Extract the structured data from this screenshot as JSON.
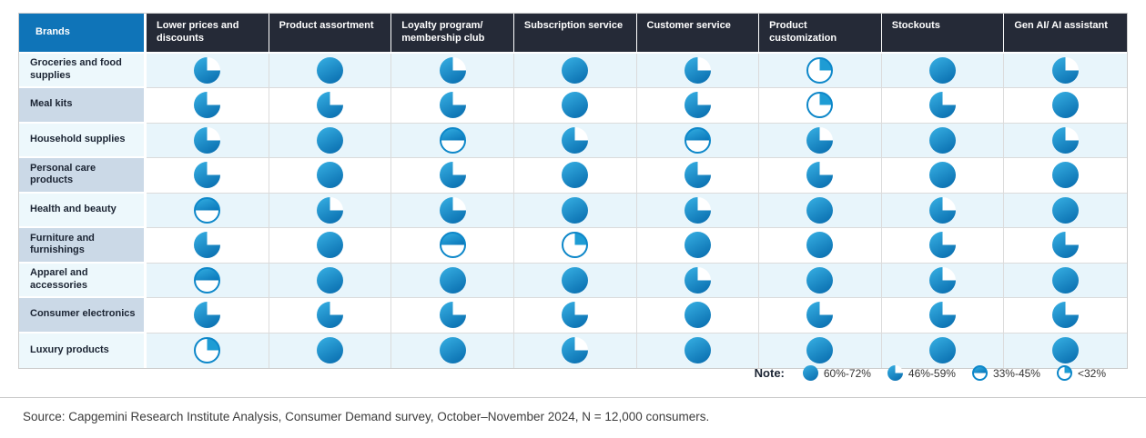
{
  "colors": {
    "header_dark": "#252a37",
    "brand_blue": "#0f74b8",
    "ball_light": "#35ade1",
    "ball_dark": "#0a6fb0",
    "row_tint": "#e8f5fb",
    "label_alt": "#cbd9e7"
  },
  "header": {
    "brands_label": "Brands",
    "columns": [
      "Lower prices and discounts",
      "Product assortment",
      "Loyalty program/ membership club",
      "Subscription service",
      "Customer service",
      "Product customization",
      "Stockouts",
      "Gen AI/ AI assistant"
    ]
  },
  "rows": [
    {
      "label": "Groceries and food supplies",
      "levels": [
        "three_quarter",
        "full",
        "three_quarter",
        "full",
        "three_quarter",
        "quarter",
        "full",
        "three_quarter"
      ]
    },
    {
      "label": "Meal kits",
      "levels": [
        "three_quarter",
        "three_quarter",
        "three_quarter",
        "full",
        "three_quarter",
        "quarter",
        "three_quarter",
        "full"
      ]
    },
    {
      "label": "Household supplies",
      "levels": [
        "three_quarter",
        "full",
        "half",
        "three_quarter",
        "half",
        "three_quarter",
        "full",
        "three_quarter"
      ]
    },
    {
      "label": "Personal care products",
      "levels": [
        "three_quarter",
        "full",
        "three_quarter",
        "full",
        "three_quarter",
        "three_quarter",
        "full",
        "full"
      ]
    },
    {
      "label": "Health and beauty",
      "levels": [
        "half",
        "three_quarter",
        "three_quarter",
        "full",
        "three_quarter",
        "full",
        "three_quarter",
        "full"
      ]
    },
    {
      "label": "Furniture and furnishings",
      "levels": [
        "three_quarter",
        "full",
        "half",
        "quarter",
        "full",
        "full",
        "three_quarter",
        "three_quarter"
      ]
    },
    {
      "label": "Apparel and accessories",
      "levels": [
        "half",
        "full",
        "full",
        "full",
        "three_quarter",
        "full",
        "three_quarter",
        "full"
      ]
    },
    {
      "label": "Consumer electronics",
      "levels": [
        "three_quarter",
        "three_quarter",
        "three_quarter",
        "three_quarter",
        "full",
        "three_quarter",
        "three_quarter",
        "three_quarter"
      ]
    },
    {
      "label": "Luxury products",
      "levels": [
        "quarter",
        "full",
        "full",
        "three_quarter",
        "full",
        "full",
        "full",
        "full"
      ]
    }
  ],
  "legend": {
    "note_label": "Note:",
    "items": [
      {
        "level": "full",
        "label": "60%-72%"
      },
      {
        "level": "three_quarter",
        "label": "46%-59%"
      },
      {
        "level": "half",
        "label": "33%-45%"
      },
      {
        "level": "quarter",
        "label": "<32%"
      }
    ]
  },
  "source": "Source: Capgemini Research Institute Analysis, Consumer Demand survey, October–November 2024, N = 12,000 consumers.",
  "chart_data": {
    "type": "table",
    "title": "",
    "columns": [
      "Lower prices and discounts",
      "Product assortment",
      "Loyalty program/ membership club",
      "Subscription service",
      "Customer service",
      "Product customization",
      "Stockouts",
      "Gen AI/ AI assistant"
    ],
    "value_bins": [
      "60%-72%",
      "46%-59%",
      "33%-45%",
      "<32%"
    ],
    "rows": [
      {
        "category": "Groceries and food supplies",
        "values": [
          "46%-59%",
          "60%-72%",
          "46%-59%",
          "60%-72%",
          "46%-59%",
          "<32%",
          "60%-72%",
          "46%-59%"
        ]
      },
      {
        "category": "Meal kits",
        "values": [
          "46%-59%",
          "46%-59%",
          "46%-59%",
          "60%-72%",
          "46%-59%",
          "<32%",
          "46%-59%",
          "60%-72%"
        ]
      },
      {
        "category": "Household supplies",
        "values": [
          "46%-59%",
          "60%-72%",
          "33%-45%",
          "46%-59%",
          "33%-45%",
          "46%-59%",
          "60%-72%",
          "46%-59%"
        ]
      },
      {
        "category": "Personal care products",
        "values": [
          "46%-59%",
          "60%-72%",
          "46%-59%",
          "60%-72%",
          "46%-59%",
          "46%-59%",
          "60%-72%",
          "60%-72%"
        ]
      },
      {
        "category": "Health and beauty",
        "values": [
          "33%-45%",
          "46%-59%",
          "46%-59%",
          "60%-72%",
          "46%-59%",
          "60%-72%",
          "46%-59%",
          "60%-72%"
        ]
      },
      {
        "category": "Furniture and furnishings",
        "values": [
          "46%-59%",
          "60%-72%",
          "33%-45%",
          "<32%",
          "60%-72%",
          "60%-72%",
          "46%-59%",
          "46%-59%"
        ]
      },
      {
        "category": "Apparel and accessories",
        "values": [
          "33%-45%",
          "60%-72%",
          "60%-72%",
          "60%-72%",
          "46%-59%",
          "60%-72%",
          "46%-59%",
          "60%-72%"
        ]
      },
      {
        "category": "Consumer electronics",
        "values": [
          "46%-59%",
          "46%-59%",
          "46%-59%",
          "46%-59%",
          "60%-72%",
          "46%-59%",
          "46%-59%",
          "46%-59%"
        ]
      },
      {
        "category": "Luxury products",
        "values": [
          "<32%",
          "60%-72%",
          "60%-72%",
          "46%-59%",
          "60%-72%",
          "60%-72%",
          "60%-72%",
          "60%-72%"
        ]
      }
    ]
  }
}
